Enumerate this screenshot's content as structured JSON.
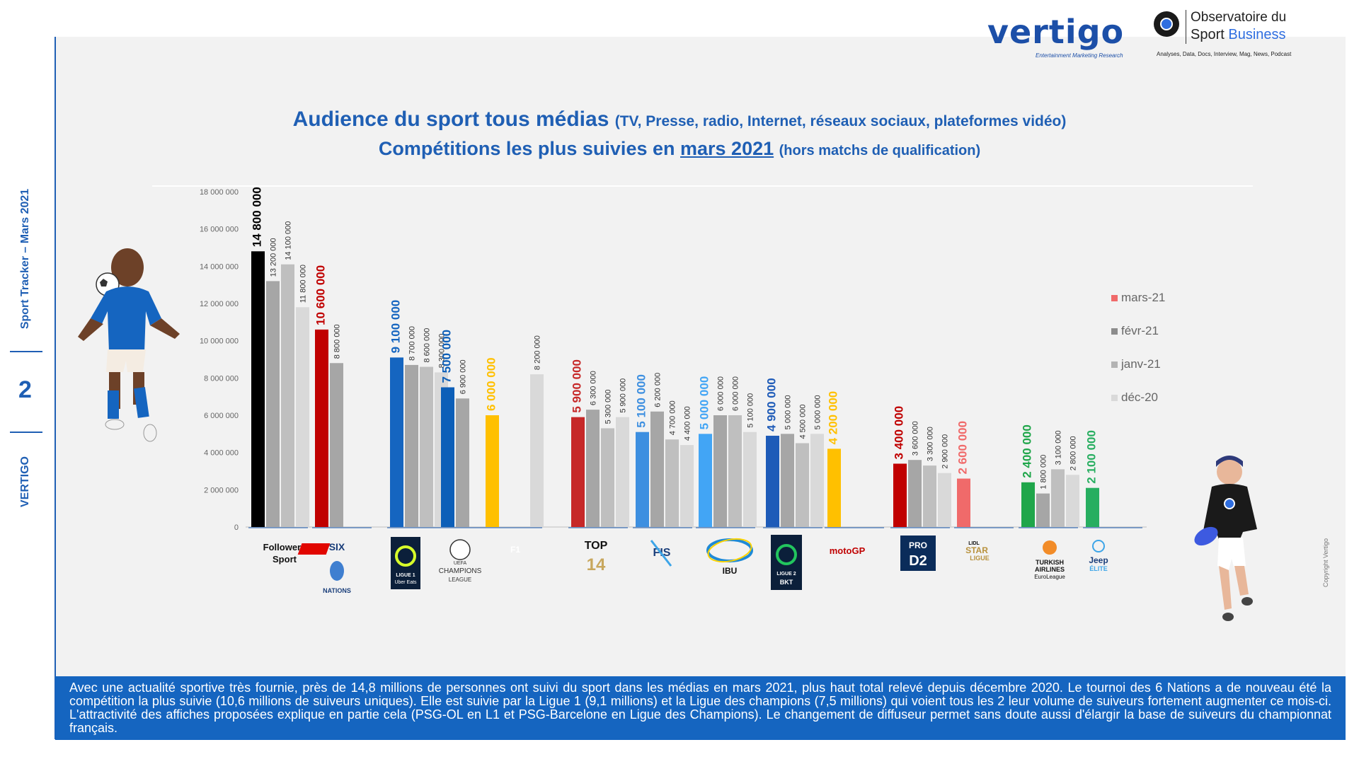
{
  "header": {
    "vertigo_logo": "vertigo",
    "vertigo_tagline": "Entertainment Marketing Research",
    "obs_line1": "Observatoire du",
    "obs_line2a": "Sport",
    "obs_line2b": "Business",
    "obs_tagline": "Analyses, Data, Docs, Interview, Mag, News, Podcast"
  },
  "title": {
    "line1_main": "Audience du sport tous médias",
    "line1_paren": "(TV, Presse, radio, Internet, réseaux sociaux, plateformes vidéo)",
    "line2_pre": "Compétitions les plus suivies en",
    "line2_month": "mars 2021",
    "line2_paren": "(hors matchs de qualification)"
  },
  "sidebar": {
    "tracker": "Sport Tracker – Mars 2021",
    "page_number": "2",
    "brand": "VERTIGO"
  },
  "colors": {
    "accent": "#1f5fb4",
    "footer_bg": "#1565c0",
    "panel": "#f2f2f2"
  },
  "chart_data": {
    "type": "bar",
    "ylim": [
      0,
      18000000
    ],
    "yticks": [
      "0",
      "2 000 000",
      "4 000 000",
      "6 000 000",
      "8 000 000",
      "10 000 000",
      "12 000 000",
      "14 000 000",
      "16 000 000",
      "18 000 000"
    ],
    "legend_position": "right",
    "legend": [
      "mars-21",
      "févr-21",
      "janv-21",
      "déc-20"
    ],
    "groups": [
      {
        "name": "Followers Sport",
        "color": "#000000",
        "values": [
          14800000,
          13200000,
          14100000,
          11800000
        ],
        "labels": [
          "14 800 000",
          "13 200 000",
          "14 100 000",
          "11 800 000"
        ]
      },
      {
        "name": "SIX NATIONS",
        "color": "#c00000",
        "values": [
          10600000,
          8800000,
          null,
          null
        ],
        "labels": [
          "10 600 000",
          "8 800 000",
          "",
          ""
        ]
      },
      {
        "name": "LIGUE 1 Uber Eats",
        "color": "#1565c0",
        "values": [
          9100000,
          8700000,
          8600000,
          8300000
        ],
        "labels": [
          "9 100 000",
          "8 700 000",
          "8 600 000",
          "8 300 000"
        ]
      },
      {
        "name": "CHAMPIONS LEAGUE",
        "color": "#0d5fb8",
        "values": [
          7500000,
          6900000,
          null,
          null
        ],
        "labels": [
          "7 500 000",
          "6 900 000",
          "",
          ""
        ]
      },
      {
        "name": "F1",
        "color": "#ffc000",
        "values": [
          6000000,
          null,
          null,
          8200000
        ],
        "labels": [
          "6 000 000",
          "",
          "",
          "8 200 000"
        ]
      },
      {
        "name": "TOP 14",
        "color": "#c62828",
        "values": [
          5900000,
          6300000,
          5300000,
          5900000
        ],
        "labels": [
          "5 900 000",
          "6 300 000",
          "5 300 000",
          "5 900 000"
        ]
      },
      {
        "name": "FIS",
        "color": "#3d8fe0",
        "values": [
          5100000,
          6200000,
          4700000,
          4400000
        ],
        "labels": [
          "5 100 000",
          "6 200 000",
          "4 700 000",
          "4 400 000"
        ]
      },
      {
        "name": "IBU",
        "color": "#42a5f5",
        "values": [
          5000000,
          6000000,
          6000000,
          5100000
        ],
        "labels": [
          "5 000 000",
          "6 000 000",
          "6 000 000",
          "5 100 000"
        ]
      },
      {
        "name": "LIGUE 2 BKT",
        "color": "#1e5bb8",
        "values": [
          4900000,
          5000000,
          4500000,
          5000000
        ],
        "labels": [
          "4 900 000",
          "5 000 000",
          "4 500 000",
          "5 000 000"
        ]
      },
      {
        "name": "MotoGP",
        "color": "#ffc000",
        "values": [
          4200000,
          null,
          null,
          null
        ],
        "labels": [
          "4 200 000",
          "",
          "",
          ""
        ]
      },
      {
        "name": "PRO D2",
        "color": "#c00000",
        "values": [
          3400000,
          3600000,
          3300000,
          2900000
        ],
        "labels": [
          "3 400 000",
          "3 600 000",
          "3 300 000",
          "2 900 000"
        ]
      },
      {
        "name": "LIDL STARLIGUE",
        "color": "#f06a6a",
        "values": [
          2600000,
          null,
          null,
          null
        ],
        "labels": [
          "2 600 000",
          "",
          "",
          ""
        ]
      },
      {
        "name": "TURKISH AIRLINES EuroLeague",
        "color": "#1fa64a",
        "values": [
          2400000,
          1800000,
          3100000,
          2800000
        ],
        "labels": [
          "2 400 000",
          "1 800 000",
          "3 100 000",
          "2 800 000"
        ]
      },
      {
        "name": "Jeep ÉLITE",
        "color": "#27ae60",
        "values": [
          2100000,
          null,
          null,
          null
        ],
        "labels": [
          "2 100 000",
          "",
          "",
          ""
        ]
      }
    ]
  },
  "xlabels": {
    "followers": "Followers",
    "followers2": "Sport",
    "six_top": "SIX",
    "six_bottom": "NATIONS",
    "l1_a": "LIGUE 1",
    "l1_b": "Uber Eats",
    "ucl_a": "UEFA",
    "ucl_b": "CHAMPIONS",
    "ucl_c": "LEAGUE",
    "f1": "F1",
    "top14_a": "TOP",
    "top14_b": "14",
    "fis": "FIS",
    "ibu": "IBU",
    "l2_a": "LIGUE 2",
    "l2_b": "BKT",
    "motogp": "motoGP",
    "prod2_a": "PRO",
    "prod2_b": "D2",
    "lidl_a": "LIDL",
    "lidl_b": "STAR",
    "lidl_c": "LIGUE",
    "tk_a": "TURKISH",
    "tk_b": "AIRLINES",
    "tk_c": "EuroLeague",
    "jeep_a": "Jeep",
    "jeep_b": "ÉLITE"
  },
  "footer": {
    "text": "Avec une actualité sportive très fournie, près de 14,8 millions de personnes ont suivi du sport dans les médias en mars 2021, plus haut total relevé depuis décembre 2020. Le tournoi des 6 Nations a de nouveau été la compétition la plus suivie (10,6 millions de suiveurs uniques). Elle est suivie par la Ligue 1 (9,1 millions) et la Ligue des champions (7,5 millions) qui voient tous les 2 leur volume de suiveurs fortement augmenter ce mois-ci. L'attractivité des affiches proposées explique en partie cela (PSG-OL en L1 et PSG-Barcelone en Ligue des Champions). Le changement de diffuseur permet sans doute aussi d'élargir la base de suiveurs du championnat français."
  },
  "copyright": "Copyright Vertigo"
}
